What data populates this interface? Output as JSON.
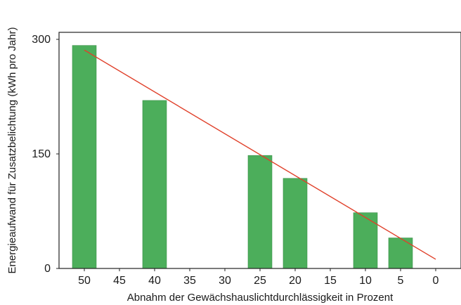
{
  "chart_data": {
    "type": "bar",
    "xlabel": "Abnahm der Gewächshauslichtdurchlässigkeit in Prozent",
    "ylabel": "Energieaufwand für Zusatzbelichtung (kWh pro Jahr)",
    "x_ticks": [
      "50",
      "45",
      "40",
      "35",
      "30",
      "25",
      "20",
      "15",
      "10",
      "5",
      "0"
    ],
    "y_ticks": [
      0,
      150,
      300
    ],
    "ylim": [
      0,
      300
    ],
    "grid": false,
    "legend": "none",
    "bar_color": "#4cae5b",
    "bars": [
      {
        "x": "50",
        "value": 292
      },
      {
        "x": "40",
        "value": 220
      },
      {
        "x": "25",
        "value": 148
      },
      {
        "x": "20",
        "value": 118
      },
      {
        "x": "10",
        "value": 73
      },
      {
        "x": "5",
        "value": 40
      }
    ],
    "trend_line": {
      "color": "#e0402a",
      "start": {
        "x": "50",
        "value": 286
      },
      "end": {
        "x": "0",
        "value": 12
      }
    }
  }
}
